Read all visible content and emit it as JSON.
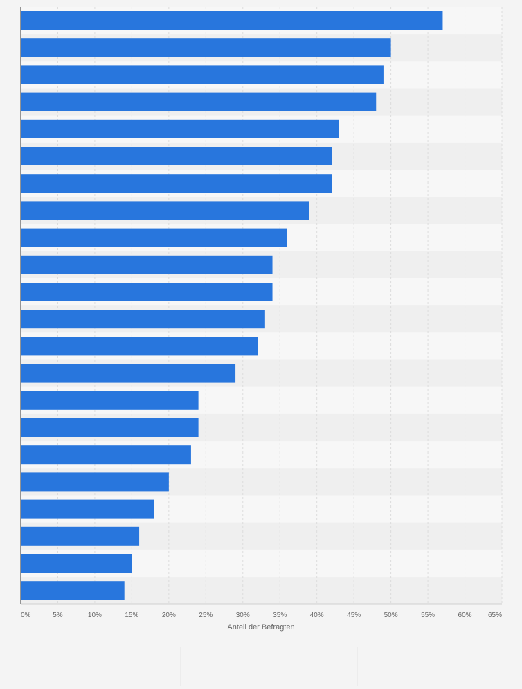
{
  "chart_data": {
    "type": "bar",
    "orientation": "horizontal",
    "categories": [
      "",
      "",
      "",
      "",
      "",
      "",
      "",
      "",
      "",
      "",
      "",
      "",
      "",
      "",
      "",
      "",
      "",
      "",
      "",
      "",
      "",
      ""
    ],
    "values": [
      57,
      50,
      49,
      48,
      43,
      42,
      42,
      39,
      36,
      34,
      34,
      33,
      32,
      29,
      24,
      24,
      23,
      20,
      18,
      16,
      15,
      14
    ],
    "xlabel": "Anteil der Befragten",
    "ylabel": "",
    "xlim": [
      0,
      65
    ],
    "x_ticks": [
      0,
      5,
      10,
      15,
      20,
      25,
      30,
      35,
      40,
      45,
      50,
      55,
      60,
      65
    ],
    "tick_suffix": "%",
    "bar_color": "#2876dd",
    "grid": true,
    "legend": "none"
  },
  "colors": {
    "page_background": "#f4f4f4",
    "plot_band_light": "#f7f7f7",
    "plot_band_dark": "#efefef",
    "gridline": "#dcdcdc",
    "axis": "#333333"
  }
}
